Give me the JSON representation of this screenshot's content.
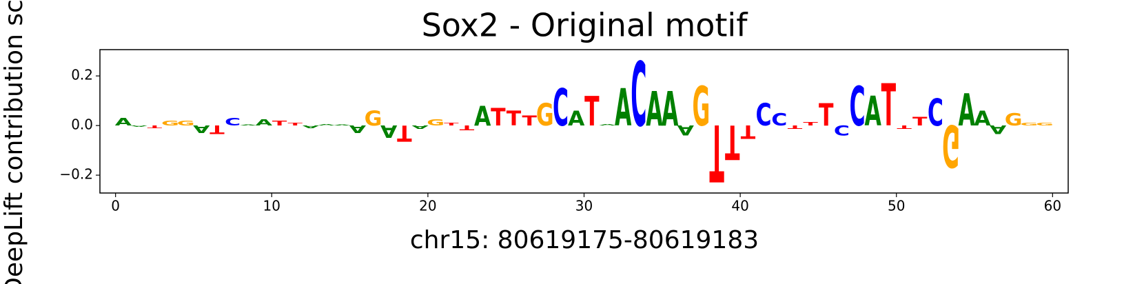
{
  "chart_data": {
    "type": "logo",
    "title": "Sox2 - Original motif",
    "xlabel": "chr15: 80619175-80619183",
    "ylabel": "DeepLift contribution scores",
    "letters": [
      "A",
      "A",
      "T",
      "G",
      "G",
      "A",
      "T",
      "C",
      "A",
      "A",
      "T",
      "T",
      "A",
      "A",
      "A",
      "A",
      "G",
      "A",
      "T",
      "A",
      "G",
      "T",
      "T",
      "A",
      "T",
      "T",
      "T",
      "G",
      "C",
      "A",
      "T",
      "A",
      "A",
      "C",
      "A",
      "A",
      "A",
      "G",
      "T",
      "T",
      "T",
      "C",
      "C",
      "T",
      "T",
      "T",
      "C",
      "C",
      "A",
      "T",
      "T",
      "T",
      "C",
      "G",
      "A",
      "A",
      "A",
      "G",
      "G",
      "G"
    ],
    "values": [
      0.03,
      -0.005,
      -0.01,
      0.02,
      0.02,
      -0.03,
      -0.035,
      0.03,
      0.003,
      0.025,
      0.02,
      0.01,
      -0.01,
      0.005,
      0.003,
      -0.03,
      0.06,
      -0.05,
      -0.065,
      -0.015,
      0.025,
      0.01,
      -0.02,
      0.08,
      0.07,
      0.06,
      0.04,
      0.09,
      0.15,
      0.06,
      0.12,
      0.005,
      0.15,
      0.26,
      0.14,
      0.14,
      -0.04,
      0.16,
      -0.23,
      -0.14,
      -0.055,
      0.09,
      0.05,
      -0.015,
      0.015,
      0.09,
      -0.04,
      0.16,
      0.12,
      0.17,
      -0.015,
      0.035,
      0.11,
      -0.17,
      0.13,
      0.06,
      -0.035,
      0.05,
      0.01,
      0.01
    ],
    "colors": {
      "A": "#008000",
      "C": "#0000ff",
      "G": "#ffa500",
      "T": "#ff0000"
    },
    "xlim": [
      -1,
      61
    ],
    "xticks": [
      0,
      10,
      20,
      30,
      40,
      50,
      60
    ],
    "ylim": [
      -0.272,
      0.306
    ],
    "yticks": [
      {
        "value": -0.2,
        "label": "−0.2"
      },
      {
        "value": 0,
        "label": "0.0"
      },
      0.2
    ]
  }
}
